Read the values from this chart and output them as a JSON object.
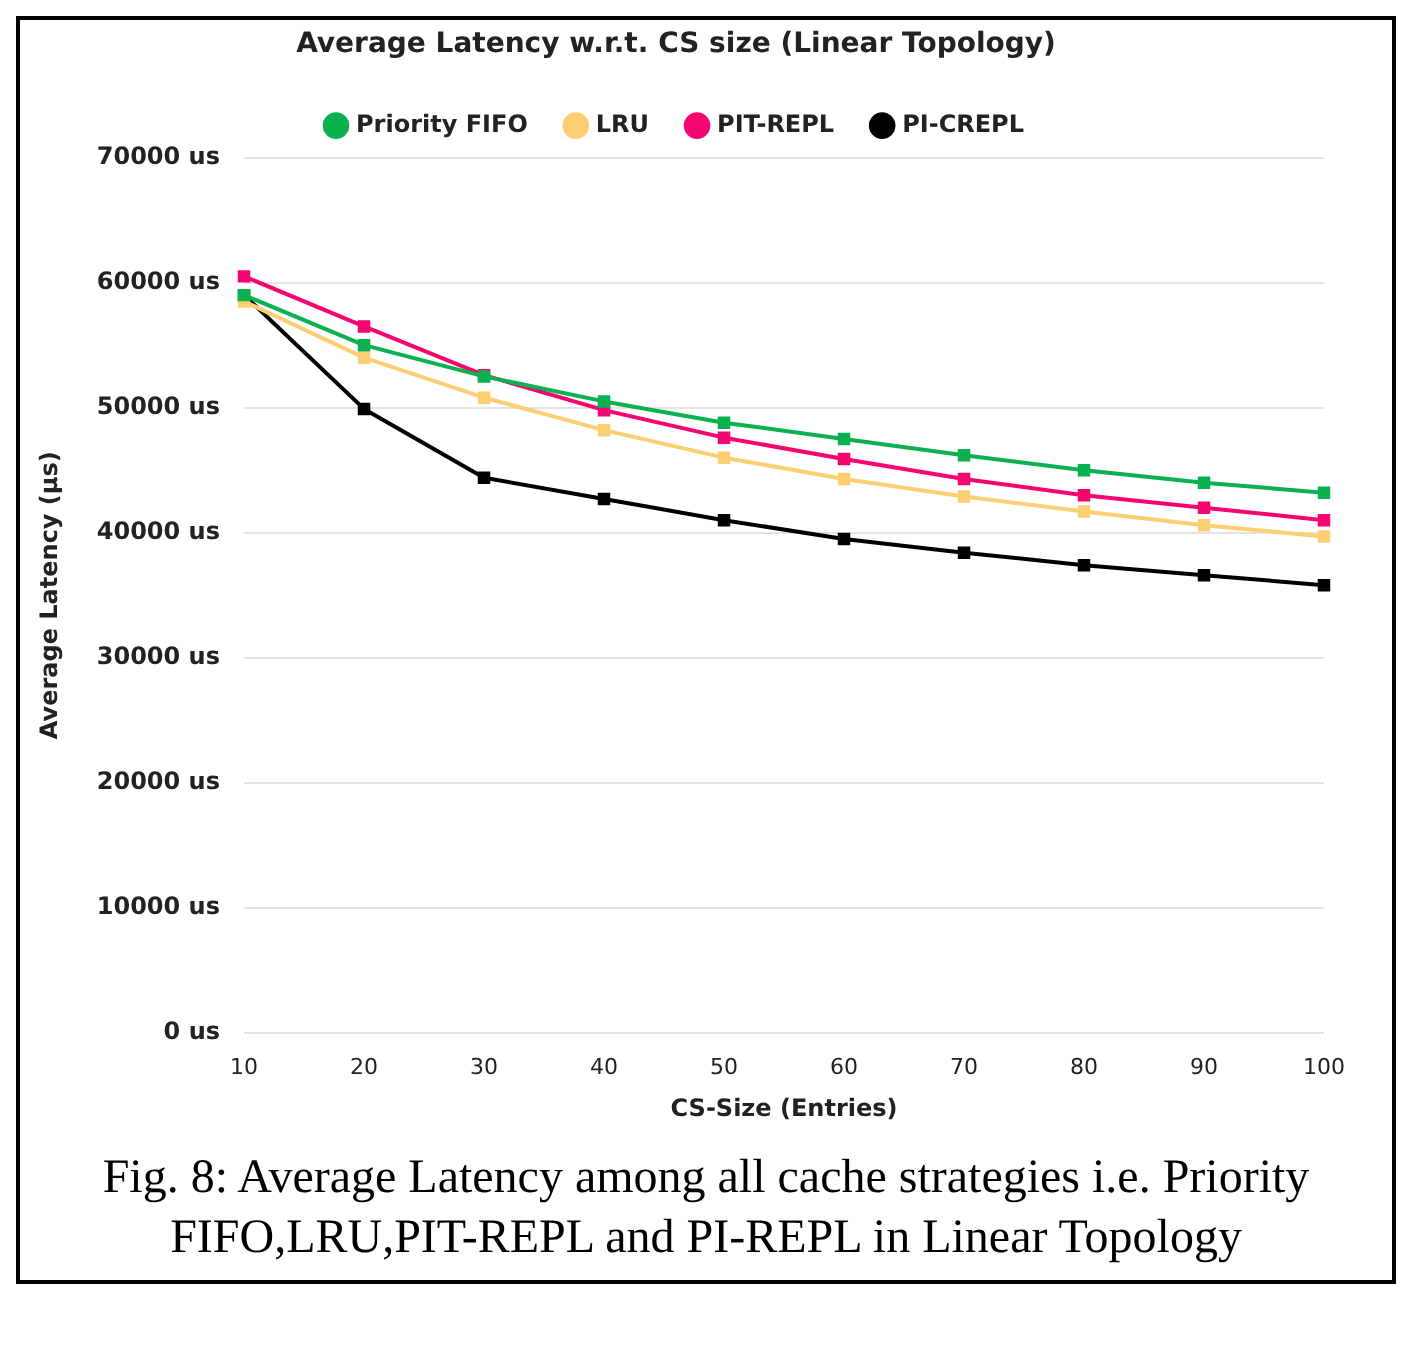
{
  "chart_data": {
    "type": "line",
    "title": "Average Latency w.r.t. CS size (Linear Topology)",
    "xlabel": "CS-Size (Entries)",
    "ylabel": "Average Latency (µs)",
    "categories": [
      "10",
      "20",
      "30",
      "40",
      "50",
      "60",
      "70",
      "80",
      "90",
      "100"
    ],
    "series": [
      {
        "name": "Priority FIFO",
        "color": "#0bb04f",
        "values": [
          59000,
          55000,
          52500,
          50500,
          48800,
          47500,
          46200,
          45000,
          44000,
          43200
        ]
      },
      {
        "name": "LRU",
        "color": "#fdcf72",
        "values": [
          58500,
          54000,
          50800,
          48200,
          46000,
          44300,
          42900,
          41700,
          40600,
          39700
        ]
      },
      {
        "name": "PIT-REPL",
        "color": "#f5056f",
        "values": [
          60500,
          56500,
          52600,
          49800,
          47600,
          45900,
          44300,
          43000,
          42000,
          41000
        ]
      },
      {
        "name": "PI-CREPL",
        "color": "#000000",
        "values": [
          59000,
          49900,
          44400,
          42700,
          41000,
          39500,
          38400,
          37400,
          36600,
          35800
        ]
      }
    ],
    "ylim": [
      0,
      70000
    ],
    "yticks": [
      {
        "value": 0,
        "label": "0 us"
      },
      {
        "value": 10000,
        "label": "10000 us"
      },
      {
        "value": 20000,
        "label": "20000 us"
      },
      {
        "value": 30000,
        "label": "30000 us"
      },
      {
        "value": 40000,
        "label": "40000 us"
      },
      {
        "value": 50000,
        "label": "50000 us"
      },
      {
        "value": 60000,
        "label": "60000 us"
      },
      {
        "value": 70000,
        "label": "70000 us"
      }
    ],
    "grid": "y",
    "legend": "top",
    "marker": "square",
    "line_style": "solid",
    "annotations": [
      "Fig. 8: Average Latency among all cache strategies i.e. Priority FIFO,LRU,PIT-REPL and PI-REPL in Linear Topology"
    ]
  }
}
